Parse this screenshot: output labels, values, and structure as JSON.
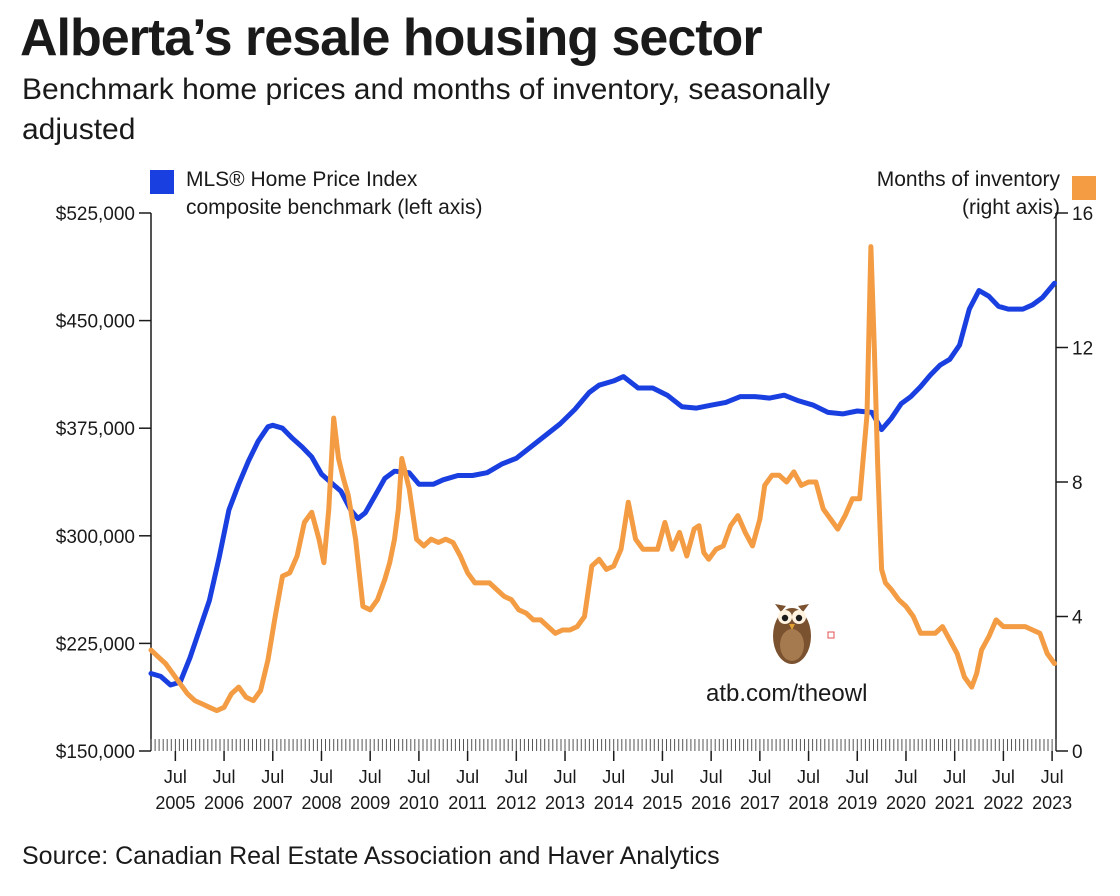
{
  "header": {
    "title": "Alberta’s resale housing sector",
    "subtitle": "Benchmark home prices and months of inventory, seasonally adjusted"
  },
  "legend": {
    "left_line1": "MLS® Home Price Index",
    "left_line2": "composite benchmark (left axis)",
    "right_line1": "Months of inventory",
    "right_line2": "(right axis)"
  },
  "footer": {
    "source": "Source: Canadian Real Estate Association and Haver Analytics",
    "owl_url": "atb.com/theowl"
  },
  "colors": {
    "price": "#1a3fe0",
    "inventory": "#f39c43",
    "axis": "#1a1a1a"
  },
  "chart_data": {
    "type": "line",
    "title": "Alberta’s resale housing sector",
    "x_range": [
      2005.0,
      2023.58
    ],
    "left_axis": {
      "ylim": [
        150000,
        525000
      ],
      "ticks": [
        150000,
        225000,
        300000,
        375000,
        450000,
        525000
      ],
      "tick_labels": [
        "$150,000",
        "$225,000",
        "$300,000",
        "$375,000",
        "$450,000",
        "$525,000"
      ]
    },
    "right_axis": {
      "ylim": [
        0,
        16
      ],
      "ticks": [
        0,
        4,
        8,
        12,
        16
      ],
      "tick_labels": [
        "0",
        "4",
        "8",
        "12",
        "16"
      ]
    },
    "x_ticks": [
      {
        "pos": 2005.5,
        "month": "Jul",
        "year": "2005"
      },
      {
        "pos": 2006.5,
        "month": "Jul",
        "year": "2006"
      },
      {
        "pos": 2007.5,
        "month": "Jul",
        "year": "2007"
      },
      {
        "pos": 2008.5,
        "month": "Jul",
        "year": "2008"
      },
      {
        "pos": 2009.5,
        "month": "Jul",
        "year": "2009"
      },
      {
        "pos": 2010.5,
        "month": "Jul",
        "year": "2010"
      },
      {
        "pos": 2011.5,
        "month": "Jul",
        "year": "2011"
      },
      {
        "pos": 2012.5,
        "month": "Jul",
        "year": "2012"
      },
      {
        "pos": 2013.5,
        "month": "Jul",
        "year": "2013"
      },
      {
        "pos": 2014.5,
        "month": "Jul",
        "year": "2014"
      },
      {
        "pos": 2015.5,
        "month": "Jul",
        "year": "2015"
      },
      {
        "pos": 2016.5,
        "month": "Jul",
        "year": "2016"
      },
      {
        "pos": 2017.5,
        "month": "Jul",
        "year": "2017"
      },
      {
        "pos": 2018.5,
        "month": "Jul",
        "year": "2018"
      },
      {
        "pos": 2019.5,
        "month": "Jul",
        "year": "2019"
      },
      {
        "pos": 2020.5,
        "month": "Jul",
        "year": "2020"
      },
      {
        "pos": 2021.5,
        "month": "Jul",
        "year": "2021"
      },
      {
        "pos": 2022.5,
        "month": "Jul",
        "year": "2022"
      },
      {
        "pos": 2023.5,
        "month": "Jul",
        "year": "2023"
      }
    ],
    "series": [
      {
        "name": "MLS® Home Price Index composite benchmark (left axis)",
        "axis": "left",
        "x": [
          2005.0,
          2005.2,
          2005.4,
          2005.6,
          2005.8,
          2006.0,
          2006.2,
          2006.4,
          2006.6,
          2006.8,
          2007.0,
          2007.2,
          2007.4,
          2007.5,
          2007.7,
          2007.9,
          2008.1,
          2008.3,
          2008.5,
          2008.7,
          2008.9,
          2009.1,
          2009.25,
          2009.4,
          2009.6,
          2009.8,
          2010.0,
          2010.3,
          2010.5,
          2010.8,
          2011.0,
          2011.3,
          2011.6,
          2011.9,
          2012.2,
          2012.5,
          2012.8,
          2013.1,
          2013.4,
          2013.7,
          2014.0,
          2014.2,
          2014.5,
          2014.7,
          2015.0,
          2015.3,
          2015.6,
          2015.9,
          2016.2,
          2016.5,
          2016.8,
          2017.1,
          2017.4,
          2017.7,
          2018.0,
          2018.3,
          2018.6,
          2018.9,
          2019.2,
          2019.5,
          2019.8,
          2020.0,
          2020.2,
          2020.4,
          2020.6,
          2020.8,
          2021.0,
          2021.2,
          2021.4,
          2021.6,
          2021.8,
          2022.0,
          2022.2,
          2022.4,
          2022.6,
          2022.9,
          2023.1,
          2023.3,
          2023.55
        ],
        "values": [
          204000,
          202000,
          196000,
          198000,
          215000,
          235000,
          255000,
          285000,
          318000,
          336000,
          352000,
          366000,
          376000,
          377000,
          375000,
          368000,
          362000,
          355000,
          343000,
          337000,
          331000,
          318000,
          312000,
          316000,
          328000,
          340000,
          345000,
          344000,
          336000,
          336000,
          339000,
          342000,
          342000,
          344000,
          350000,
          354000,
          362000,
          370000,
          378000,
          388000,
          400000,
          405000,
          408000,
          411000,
          403000,
          403000,
          398000,
          390000,
          389000,
          391000,
          393000,
          397000,
          397000,
          396000,
          398000,
          394000,
          391000,
          386000,
          385000,
          387000,
          386000,
          374000,
          382000,
          392000,
          397000,
          404000,
          412000,
          419000,
          423000,
          433000,
          458000,
          471000,
          467000,
          460000,
          458000,
          458000,
          461000,
          466000,
          476000
        ]
      },
      {
        "name": "Months of inventory (right axis)",
        "axis": "right",
        "x": [
          2005.0,
          2005.15,
          2005.3,
          2005.45,
          2005.6,
          2005.75,
          2005.9,
          2006.05,
          2006.2,
          2006.35,
          2006.5,
          2006.65,
          2006.8,
          2006.95,
          2007.1,
          2007.25,
          2007.4,
          2007.55,
          2007.7,
          2007.85,
          2008.0,
          2008.15,
          2008.3,
          2008.45,
          2008.55,
          2008.65,
          2008.75,
          2008.85,
          2008.95,
          2009.05,
          2009.2,
          2009.35,
          2009.5,
          2009.65,
          2009.8,
          2009.9,
          2010.0,
          2010.08,
          2010.15,
          2010.3,
          2010.45,
          2010.6,
          2010.75,
          2010.9,
          2011.05,
          2011.2,
          2011.35,
          2011.5,
          2011.65,
          2011.8,
          2011.95,
          2012.1,
          2012.25,
          2012.4,
          2012.55,
          2012.7,
          2012.85,
          2013.0,
          2013.15,
          2013.3,
          2013.45,
          2013.6,
          2013.75,
          2013.9,
          2014.05,
          2014.2,
          2014.35,
          2014.5,
          2014.65,
          2014.8,
          2014.95,
          2015.1,
          2015.25,
          2015.4,
          2015.55,
          2015.7,
          2015.85,
          2016.0,
          2016.15,
          2016.25,
          2016.35,
          2016.45,
          2016.6,
          2016.75,
          2016.9,
          2017.05,
          2017.2,
          2017.35,
          2017.5,
          2017.6,
          2017.75,
          2017.9,
          2018.05,
          2018.2,
          2018.35,
          2018.5,
          2018.65,
          2018.8,
          2018.95,
          2019.1,
          2019.25,
          2019.4,
          2019.55,
          2019.7,
          2019.78,
          2019.85,
          2019.92,
          2020.0,
          2020.08,
          2020.2,
          2020.35,
          2020.5,
          2020.65,
          2020.8,
          2020.95,
          2021.1,
          2021.25,
          2021.4,
          2021.55,
          2021.7,
          2021.85,
          2021.95,
          2022.05,
          2022.2,
          2022.35,
          2022.5,
          2022.65,
          2022.8,
          2022.95,
          2023.1,
          2023.25,
          2023.4,
          2023.55
        ],
        "values": [
          3.0,
          2.8,
          2.6,
          2.3,
          2.0,
          1.7,
          1.5,
          1.4,
          1.3,
          1.2,
          1.3,
          1.7,
          1.9,
          1.6,
          1.5,
          1.8,
          2.7,
          4.0,
          5.2,
          5.3,
          5.8,
          6.8,
          7.1,
          6.3,
          5.6,
          7.2,
          9.9,
          8.7,
          8.1,
          7.6,
          6.3,
          4.3,
          4.2,
          4.5,
          5.1,
          5.6,
          6.3,
          7.2,
          8.7,
          7.8,
          6.3,
          6.1,
          6.3,
          6.2,
          6.3,
          6.2,
          5.8,
          5.3,
          5.0,
          5.0,
          5.0,
          4.8,
          4.6,
          4.5,
          4.2,
          4.1,
          3.9,
          3.9,
          3.7,
          3.5,
          3.6,
          3.6,
          3.7,
          4.0,
          5.5,
          5.7,
          5.4,
          5.5,
          6.0,
          7.4,
          6.3,
          6.0,
          6.0,
          6.0,
          6.8,
          6.0,
          6.5,
          5.8,
          6.6,
          6.7,
          5.9,
          5.7,
          6.0,
          6.1,
          6.7,
          7.0,
          6.5,
          6.1,
          6.9,
          7.9,
          8.2,
          8.2,
          8.0,
          8.3,
          7.9,
          8.0,
          8.0,
          7.2,
          6.9,
          6.6,
          7.0,
          7.5,
          7.5,
          10.0,
          15.0,
          12.0,
          8.5,
          5.4,
          5.0,
          4.8,
          4.5,
          4.3,
          4.0,
          3.5,
          3.5,
          3.5,
          3.7,
          3.3,
          2.9,
          2.2,
          1.9,
          2.3,
          3.0,
          3.4,
          3.9,
          3.7,
          3.7,
          3.7,
          3.7,
          3.6,
          3.5,
          2.9,
          2.6
        ]
      }
    ]
  }
}
